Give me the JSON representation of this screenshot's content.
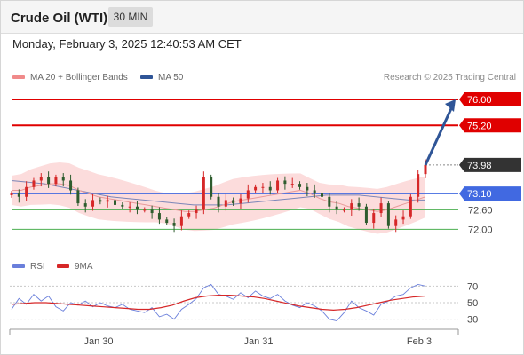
{
  "header": {
    "title": "Crude Oil (WTI)",
    "timeframe": "30 MIN"
  },
  "datetime": "Monday, February 3, 2025 12:40:53 AM CET",
  "legend_main": [
    {
      "label": "MA 20 + Bollinger Bands",
      "color": "#f08a8a"
    },
    {
      "label": "MA 50",
      "color": "#2f5597"
    }
  ],
  "credit": "Research © 2025 Trading Central",
  "legend_rsi": [
    {
      "label": "RSI",
      "color": "#6a7fdb"
    },
    {
      "label": "9MA",
      "color": "#d62728"
    }
  ],
  "colors": {
    "resistance": "#e00000",
    "pivot": "#4169e1",
    "support": "#4caf50",
    "current": "#333333",
    "arrow": "#2f5597",
    "up_candle": "#d62728",
    "down_candle": "#2e5c2e",
    "band_fill": "#fcdcdc"
  },
  "chart_data": [
    {
      "type": "line",
      "title": "Crude Oil (WTI) 30 MIN",
      "x_ticks": [
        "Jan 30",
        "Jan 31",
        "Feb 3"
      ],
      "ylim": [
        71.6,
        76.3
      ],
      "levels": [
        {
          "label": "76.00",
          "value": 76.0,
          "kind": "resistance"
        },
        {
          "label": "75.20",
          "value": 75.2,
          "kind": "resistance"
        },
        {
          "label": "73.98",
          "value": 73.98,
          "kind": "current"
        },
        {
          "label": "73.10",
          "value": 73.1,
          "kind": "pivot"
        },
        {
          "label": "72.60",
          "value": 72.6,
          "kind": "support"
        },
        {
          "label": "72.00",
          "value": 72.0,
          "kind": "support"
        }
      ],
      "projection": {
        "from": 73.98,
        "to": 76.0
      },
      "series": [
        {
          "name": "Price (close)",
          "values": [
            73.1,
            73.0,
            73.3,
            73.5,
            73.6,
            73.4,
            73.6,
            73.5,
            73.2,
            72.8,
            72.7,
            72.9,
            72.85,
            72.9,
            72.75,
            72.7,
            72.7,
            72.6,
            72.6,
            72.5,
            72.3,
            72.2,
            72.1,
            72.4,
            72.5,
            72.6,
            73.6,
            73.0,
            72.7,
            72.9,
            72.8,
            72.95,
            73.2,
            73.3,
            73.3,
            73.2,
            73.5,
            73.4,
            73.4,
            73.3,
            73.2,
            73.1,
            73.0,
            72.7,
            72.6,
            72.6,
            72.8,
            72.7,
            72.2,
            72.5,
            72.8,
            72.1,
            72.3,
            72.4,
            73.0,
            73.7,
            73.98
          ]
        },
        {
          "name": "MA 20",
          "values": [
            73.2,
            73.2,
            73.3,
            73.35,
            73.4,
            73.4,
            73.35,
            73.2,
            73.1,
            73.0,
            72.95,
            72.9,
            72.85,
            72.8,
            72.75,
            72.7,
            72.65,
            72.6,
            72.55,
            72.55,
            72.6,
            72.65,
            72.75,
            72.85,
            72.9,
            72.95,
            73.0,
            73.05,
            73.1,
            73.15,
            73.2,
            73.1,
            72.95,
            72.85,
            72.8,
            72.7,
            72.65,
            72.6,
            72.55,
            72.6,
            72.7,
            72.8,
            72.9,
            73.0
          ]
        },
        {
          "name": "MA 50",
          "values": [
            73.5,
            73.45,
            73.4,
            73.3,
            73.2,
            73.1,
            73.0,
            72.95,
            72.9,
            72.85,
            72.8,
            72.75,
            72.75,
            72.75,
            72.8,
            72.85,
            72.9,
            72.95,
            73.0,
            73.05,
            73.05,
            73.05,
            73.0,
            72.95,
            72.9,
            72.9
          ]
        }
      ]
    },
    {
      "type": "line",
      "title": "RSI",
      "y_ticks": [
        "70",
        "50",
        "30"
      ],
      "ylim": [
        20,
        80
      ],
      "series": [
        {
          "name": "RSI",
          "values": [
            42,
            55,
            48,
            60,
            52,
            58,
            45,
            40,
            50,
            47,
            52,
            45,
            50,
            46,
            44,
            48,
            42,
            40,
            38,
            44,
            33,
            36,
            30,
            42,
            48,
            55,
            68,
            72,
            60,
            58,
            54,
            62,
            56,
            64,
            58,
            55,
            60,
            52,
            47,
            44,
            50,
            46,
            40,
            30,
            28,
            38,
            52,
            44,
            40,
            35,
            48,
            52,
            58,
            60,
            68,
            72,
            70
          ]
        },
        {
          "name": "9MA",
          "values": [
            48,
            49,
            50,
            50,
            49,
            48,
            47,
            46,
            45,
            44,
            43,
            42,
            42,
            44,
            47,
            52,
            56,
            58,
            59,
            59,
            58,
            57,
            55,
            52,
            49,
            46,
            44,
            42,
            41,
            42,
            44,
            47,
            50,
            53,
            55,
            57,
            58
          ]
        }
      ]
    }
  ]
}
